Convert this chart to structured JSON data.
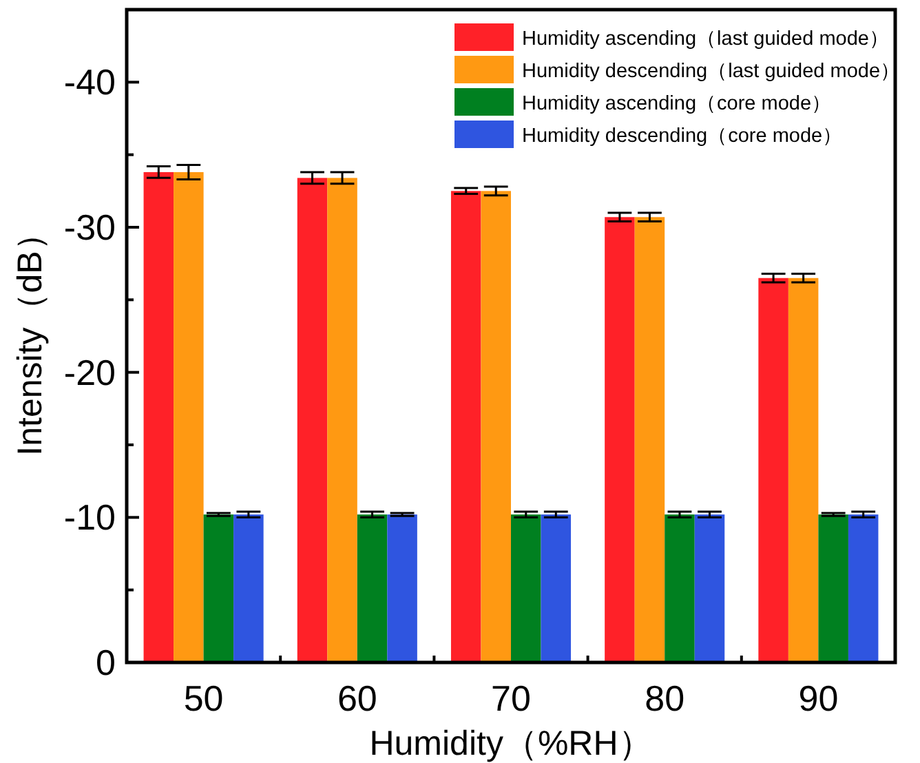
{
  "chart_data": {
    "type": "bar",
    "xlabel": "Humidity（%RH）",
    "ylabel": "Intensity（dB）",
    "categories": [
      "50",
      "60",
      "70",
      "80",
      "90"
    ],
    "series": [
      {
        "name": "Humidity ascending（last guided mode）",
        "color": "#ff2128",
        "values": [
          -33.8,
          -33.4,
          -32.5,
          -30.7,
          -26.5
        ],
        "errors": [
          0.4,
          0.4,
          0.2,
          0.3,
          0.3
        ]
      },
      {
        "name": "Humidity descending（last guided mode）",
        "color": "#ff9912",
        "values": [
          -33.8,
          -33.4,
          -32.5,
          -30.7,
          -26.5
        ],
        "errors": [
          0.5,
          0.4,
          0.3,
          0.3,
          0.3
        ]
      },
      {
        "name": "Humidity ascending（core mode）",
        "color": "#008020",
        "values": [
          -10.2,
          -10.2,
          -10.2,
          -10.2,
          -10.2
        ],
        "errors": [
          0.1,
          0.2,
          0.2,
          0.2,
          0.1
        ]
      },
      {
        "name": "Humidity descending（core mode）",
        "color": "#2f55e0",
        "values": [
          -10.2,
          -10.2,
          -10.2,
          -10.2,
          -10.2
        ],
        "errors": [
          0.2,
          0.1,
          0.2,
          0.2,
          0.2
        ]
      }
    ],
    "ylim": [
      0,
      -45
    ],
    "yticks": [
      0,
      {
        "value": -5,
        "label": null
      },
      -10,
      {
        "value": -15,
        "label": null
      },
      -20,
      {
        "value": -25,
        "label": null
      },
      -30,
      {
        "value": -35,
        "label": null
      },
      -40,
      {
        "value": -45,
        "label": null
      }
    ],
    "legend": "top right",
    "grid": false
  }
}
